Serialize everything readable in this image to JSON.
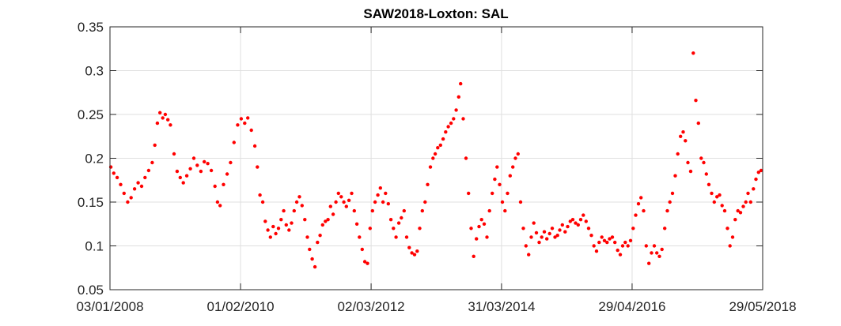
{
  "chart_data": {
    "type": "scatter",
    "title": "SAW2018-Loxton: SAL",
    "xlabel": "",
    "ylabel": "",
    "x_ticks": [
      "03/01/2008",
      "01/02/2010",
      "02/03/2012",
      "31/03/2014",
      "29/04/2016",
      "29/05/2018"
    ],
    "y_ticks": [
      "0.05",
      "0.1",
      "0.15",
      "0.2",
      "0.25",
      "0.3",
      "0.35"
    ],
    "xlim": [
      "2008-01-03",
      "2018-05-29"
    ],
    "ylim": [
      0.05,
      0.35
    ],
    "grid": true,
    "marker_color": "#ff0000",
    "series": [
      {
        "points": [
          [
            "2008-01-08",
            0.19
          ],
          [
            "2008-01-25",
            0.183
          ],
          [
            "2008-02-14",
            0.178
          ],
          [
            "2008-03-05",
            0.17
          ],
          [
            "2008-03-25",
            0.16
          ],
          [
            "2008-04-15",
            0.15
          ],
          [
            "2008-05-05",
            0.155
          ],
          [
            "2008-05-25",
            0.165
          ],
          [
            "2008-06-15",
            0.172
          ],
          [
            "2008-07-05",
            0.168
          ],
          [
            "2008-07-25",
            0.178
          ],
          [
            "2008-08-15",
            0.186
          ],
          [
            "2008-09-05",
            0.195
          ],
          [
            "2008-09-20",
            0.215
          ],
          [
            "2008-10-05",
            0.24
          ],
          [
            "2008-10-20",
            0.252
          ],
          [
            "2008-11-05",
            0.246
          ],
          [
            "2008-11-20",
            0.25
          ],
          [
            "2008-12-05",
            0.244
          ],
          [
            "2008-12-20",
            0.238
          ],
          [
            "2009-01-10",
            0.205
          ],
          [
            "2009-01-28",
            0.185
          ],
          [
            "2009-02-15",
            0.178
          ],
          [
            "2009-03-05",
            0.172
          ],
          [
            "2009-03-25",
            0.18
          ],
          [
            "2009-04-15",
            0.188
          ],
          [
            "2009-05-05",
            0.2
          ],
          [
            "2009-05-25",
            0.192
          ],
          [
            "2009-06-15",
            0.185
          ],
          [
            "2009-07-05",
            0.196
          ],
          [
            "2009-07-25",
            0.194
          ],
          [
            "2009-08-15",
            0.186
          ],
          [
            "2009-09-05",
            0.168
          ],
          [
            "2009-09-20",
            0.15
          ],
          [
            "2009-10-05",
            0.146
          ],
          [
            "2009-10-25",
            0.17
          ],
          [
            "2009-11-15",
            0.182
          ],
          [
            "2009-12-05",
            0.195
          ],
          [
            "2009-12-25",
            0.218
          ],
          [
            "2010-01-15",
            0.238
          ],
          [
            "2010-02-05",
            0.245
          ],
          [
            "2010-02-25",
            0.24
          ],
          [
            "2010-03-15",
            0.246
          ],
          [
            "2010-04-05",
            0.232
          ],
          [
            "2010-04-25",
            0.214
          ],
          [
            "2010-05-10",
            0.19
          ],
          [
            "2010-05-25",
            0.158
          ],
          [
            "2010-06-10",
            0.15
          ],
          [
            "2010-06-25",
            0.128
          ],
          [
            "2010-07-10",
            0.118
          ],
          [
            "2010-07-25",
            0.11
          ],
          [
            "2010-08-10",
            0.122
          ],
          [
            "2010-08-25",
            0.114
          ],
          [
            "2010-09-10",
            0.12
          ],
          [
            "2010-09-25",
            0.13
          ],
          [
            "2010-10-10",
            0.14
          ],
          [
            "2010-10-25",
            0.124
          ],
          [
            "2010-11-10",
            0.118
          ],
          [
            "2010-11-25",
            0.126
          ],
          [
            "2010-12-10",
            0.14
          ],
          [
            "2010-12-25",
            0.15
          ],
          [
            "2011-01-10",
            0.156
          ],
          [
            "2011-01-25",
            0.146
          ],
          [
            "2011-02-10",
            0.13
          ],
          [
            "2011-02-25",
            0.11
          ],
          [
            "2011-03-10",
            0.096
          ],
          [
            "2011-03-25",
            0.085
          ],
          [
            "2011-04-10",
            0.076
          ],
          [
            "2011-04-25",
            0.104
          ],
          [
            "2011-05-10",
            0.112
          ],
          [
            "2011-05-25",
            0.124
          ],
          [
            "2011-06-10",
            0.128
          ],
          [
            "2011-06-25",
            0.13
          ],
          [
            "2011-07-10",
            0.145
          ],
          [
            "2011-07-25",
            0.136
          ],
          [
            "2011-08-10",
            0.15
          ],
          [
            "2011-08-25",
            0.16
          ],
          [
            "2011-09-10",
            0.156
          ],
          [
            "2011-09-25",
            0.15
          ],
          [
            "2011-10-10",
            0.145
          ],
          [
            "2011-10-25",
            0.152
          ],
          [
            "2011-11-10",
            0.16
          ],
          [
            "2011-11-25",
            0.14
          ],
          [
            "2011-12-10",
            0.125
          ],
          [
            "2011-12-25",
            0.11
          ],
          [
            "2012-01-10",
            0.096
          ],
          [
            "2012-01-25",
            0.082
          ],
          [
            "2012-02-10",
            0.08
          ],
          [
            "2012-02-25",
            0.12
          ],
          [
            "2012-03-10",
            0.14
          ],
          [
            "2012-03-25",
            0.15
          ],
          [
            "2012-04-10",
            0.158
          ],
          [
            "2012-04-25",
            0.166
          ],
          [
            "2012-05-10",
            0.15
          ],
          [
            "2012-05-25",
            0.16
          ],
          [
            "2012-06-10",
            0.148
          ],
          [
            "2012-06-25",
            0.13
          ],
          [
            "2012-07-10",
            0.12
          ],
          [
            "2012-07-25",
            0.11
          ],
          [
            "2012-08-10",
            0.126
          ],
          [
            "2012-08-25",
            0.132
          ],
          [
            "2012-09-10",
            0.14
          ],
          [
            "2012-09-25",
            0.11
          ],
          [
            "2012-10-10",
            0.098
          ],
          [
            "2012-10-25",
            0.092
          ],
          [
            "2012-11-10",
            0.09
          ],
          [
            "2012-11-25",
            0.094
          ],
          [
            "2012-12-10",
            0.12
          ],
          [
            "2012-12-25",
            0.14
          ],
          [
            "2013-01-10",
            0.15
          ],
          [
            "2013-01-25",
            0.17
          ],
          [
            "2013-02-10",
            0.19
          ],
          [
            "2013-02-25",
            0.2
          ],
          [
            "2013-03-10",
            0.205
          ],
          [
            "2013-03-25",
            0.212
          ],
          [
            "2013-04-10",
            0.215
          ],
          [
            "2013-04-25",
            0.222
          ],
          [
            "2013-05-10",
            0.23
          ],
          [
            "2013-05-25",
            0.236
          ],
          [
            "2013-06-10",
            0.24
          ],
          [
            "2013-06-25",
            0.245
          ],
          [
            "2013-07-10",
            0.255
          ],
          [
            "2013-07-25",
            0.27
          ],
          [
            "2013-08-05",
            0.285
          ],
          [
            "2013-08-20",
            0.245
          ],
          [
            "2013-09-05",
            0.2
          ],
          [
            "2013-09-20",
            0.16
          ],
          [
            "2013-10-05",
            0.12
          ],
          [
            "2013-10-20",
            0.088
          ],
          [
            "2013-11-05",
            0.108
          ],
          [
            "2013-11-20",
            0.122
          ],
          [
            "2013-12-05",
            0.13
          ],
          [
            "2013-12-20",
            0.125
          ],
          [
            "2014-01-05",
            0.11
          ],
          [
            "2014-01-20",
            0.14
          ],
          [
            "2014-02-05",
            0.16
          ],
          [
            "2014-02-20",
            0.176
          ],
          [
            "2014-03-05",
            0.19
          ],
          [
            "2014-03-20",
            0.17
          ],
          [
            "2014-04-05",
            0.15
          ],
          [
            "2014-04-20",
            0.14
          ],
          [
            "2014-05-05",
            0.16
          ],
          [
            "2014-05-20",
            0.18
          ],
          [
            "2014-06-05",
            0.19
          ],
          [
            "2014-06-20",
            0.2
          ],
          [
            "2014-07-05",
            0.205
          ],
          [
            "2014-07-20",
            0.15
          ],
          [
            "2014-08-05",
            0.12
          ],
          [
            "2014-08-20",
            0.1
          ],
          [
            "2014-09-05",
            0.09
          ],
          [
            "2014-09-20",
            0.11
          ],
          [
            "2014-10-05",
            0.126
          ],
          [
            "2014-10-20",
            0.115
          ],
          [
            "2014-11-05",
            0.104
          ],
          [
            "2014-11-20",
            0.11
          ],
          [
            "2014-12-05",
            0.116
          ],
          [
            "2014-12-20",
            0.108
          ],
          [
            "2015-01-05",
            0.114
          ],
          [
            "2015-01-20",
            0.12
          ],
          [
            "2015-02-05",
            0.11
          ],
          [
            "2015-02-20",
            0.112
          ],
          [
            "2015-03-05",
            0.118
          ],
          [
            "2015-03-20",
            0.124
          ],
          [
            "2015-04-05",
            0.116
          ],
          [
            "2015-04-20",
            0.122
          ],
          [
            "2015-05-05",
            0.128
          ],
          [
            "2015-05-20",
            0.13
          ],
          [
            "2015-06-05",
            0.126
          ],
          [
            "2015-06-20",
            0.124
          ],
          [
            "2015-07-05",
            0.13
          ],
          [
            "2015-07-20",
            0.135
          ],
          [
            "2015-08-05",
            0.128
          ],
          [
            "2015-08-20",
            0.12
          ],
          [
            "2015-09-05",
            0.112
          ],
          [
            "2015-09-20",
            0.1
          ],
          [
            "2015-10-05",
            0.094
          ],
          [
            "2015-10-20",
            0.104
          ],
          [
            "2015-11-05",
            0.11
          ],
          [
            "2015-11-20",
            0.106
          ],
          [
            "2015-12-05",
            0.104
          ],
          [
            "2015-12-20",
            0.108
          ],
          [
            "2016-01-05",
            0.11
          ],
          [
            "2016-01-20",
            0.104
          ],
          [
            "2016-02-05",
            0.095
          ],
          [
            "2016-02-20",
            0.09
          ],
          [
            "2016-03-05",
            0.1
          ],
          [
            "2016-03-20",
            0.104
          ],
          [
            "2016-04-05",
            0.1
          ],
          [
            "2016-04-20",
            0.106
          ],
          [
            "2016-05-05",
            0.12
          ],
          [
            "2016-05-20",
            0.135
          ],
          [
            "2016-06-05",
            0.148
          ],
          [
            "2016-06-20",
            0.155
          ],
          [
            "2016-07-05",
            0.14
          ],
          [
            "2016-07-20",
            0.1
          ],
          [
            "2016-08-05",
            0.08
          ],
          [
            "2016-08-20",
            0.092
          ],
          [
            "2016-09-05",
            0.1
          ],
          [
            "2016-09-20",
            0.092
          ],
          [
            "2016-10-05",
            0.088
          ],
          [
            "2016-10-20",
            0.096
          ],
          [
            "2016-11-05",
            0.12
          ],
          [
            "2016-11-20",
            0.14
          ],
          [
            "2016-12-05",
            0.15
          ],
          [
            "2016-12-20",
            0.16
          ],
          [
            "2017-01-05",
            0.18
          ],
          [
            "2017-01-20",
            0.205
          ],
          [
            "2017-02-05",
            0.225
          ],
          [
            "2017-02-20",
            0.23
          ],
          [
            "2017-03-05",
            0.22
          ],
          [
            "2017-03-20",
            0.195
          ],
          [
            "2017-04-05",
            0.185
          ],
          [
            "2017-04-20",
            0.32
          ],
          [
            "2017-05-05",
            0.266
          ],
          [
            "2017-05-20",
            0.24
          ],
          [
            "2017-06-05",
            0.2
          ],
          [
            "2017-06-20",
            0.195
          ],
          [
            "2017-07-05",
            0.182
          ],
          [
            "2017-07-20",
            0.17
          ],
          [
            "2017-08-05",
            0.16
          ],
          [
            "2017-08-20",
            0.15
          ],
          [
            "2017-09-05",
            0.156
          ],
          [
            "2017-09-20",
            0.158
          ],
          [
            "2017-10-05",
            0.146
          ],
          [
            "2017-10-20",
            0.14
          ],
          [
            "2017-11-05",
            0.12
          ],
          [
            "2017-11-20",
            0.1
          ],
          [
            "2017-12-05",
            0.11
          ],
          [
            "2017-12-20",
            0.13
          ],
          [
            "2018-01-05",
            0.14
          ],
          [
            "2018-01-20",
            0.138
          ],
          [
            "2018-02-05",
            0.145
          ],
          [
            "2018-02-20",
            0.15
          ],
          [
            "2018-03-05",
            0.16
          ],
          [
            "2018-03-20",
            0.15
          ],
          [
            "2018-04-05",
            0.165
          ],
          [
            "2018-04-20",
            0.176
          ],
          [
            "2018-05-05",
            0.184
          ],
          [
            "2018-05-20",
            0.186
          ]
        ]
      }
    ]
  }
}
